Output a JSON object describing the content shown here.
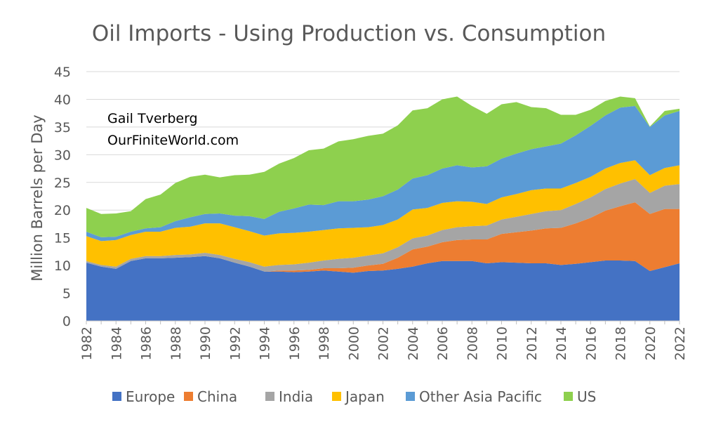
{
  "chart_data": {
    "type": "area",
    "stacked": true,
    "title": "Oil Imports - Using Production vs. Consumption",
    "xlabel": "",
    "ylabel": "Million Barrels per Day",
    "ylim": [
      0,
      45
    ],
    "yticks": [
      0,
      5,
      10,
      15,
      20,
      25,
      30,
      35,
      40,
      45
    ],
    "xlim": [
      1982,
      2022
    ],
    "xticks": [
      1982,
      1984,
      1986,
      1988,
      1990,
      1992,
      1994,
      1996,
      1998,
      2000,
      2002,
      2004,
      2006,
      2008,
      2010,
      2012,
      2014,
      2016,
      2018,
      2020,
      2022
    ],
    "grid": "horizontal",
    "legend_position": "bottom",
    "annotations": [
      "Gail Tverberg",
      "OurFiniteWorld.com"
    ],
    "x": [
      1982,
      1983,
      1984,
      1985,
      1986,
      1987,
      1988,
      1989,
      1990,
      1991,
      1992,
      1993,
      1994,
      1995,
      1996,
      1997,
      1998,
      1999,
      2000,
      2001,
      2002,
      2003,
      2004,
      2005,
      2006,
      2007,
      2008,
      2009,
      2010,
      2011,
      2012,
      2013,
      2014,
      2015,
      2016,
      2017,
      2018,
      2019,
      2020,
      2021,
      2022
    ],
    "series": [
      {
        "name": "Europe",
        "color": "#4472C4",
        "values": [
          10.5,
          9.8,
          9.4,
          10.8,
          11.3,
          11.3,
          11.4,
          11.5,
          11.7,
          11.3,
          10.5,
          9.8,
          8.9,
          8.9,
          8.8,
          8.9,
          9.1,
          8.9,
          8.7,
          9.0,
          9.1,
          9.4,
          9.8,
          10.4,
          10.8,
          10.8,
          10.8,
          10.4,
          10.6,
          10.5,
          10.4,
          10.4,
          10.1,
          10.3,
          10.6,
          10.9,
          10.9,
          10.8,
          9.0,
          9.7,
          10.4
        ]
      },
      {
        "name": "China",
        "color": "#ED7D31",
        "values": [
          0,
          0,
          0,
          0,
          0,
          0,
          0,
          0,
          0,
          0,
          0,
          0,
          0,
          0.2,
          0.3,
          0.3,
          0.4,
          0.6,
          0.9,
          1.0,
          1.2,
          2.0,
          3.1,
          3.0,
          3.4,
          3.8,
          3.9,
          4.3,
          5.1,
          5.5,
          5.9,
          6.3,
          6.7,
          7.3,
          8.0,
          9.0,
          9.8,
          10.6,
          10.3,
          10.5,
          9.8
        ]
      },
      {
        "name": "India",
        "color": "#A5A5A5",
        "values": [
          0.3,
          0.3,
          0.4,
          0.4,
          0.4,
          0.4,
          0.5,
          0.5,
          0.6,
          0.6,
          0.7,
          0.8,
          0.9,
          1.0,
          1.1,
          1.3,
          1.4,
          1.7,
          1.8,
          1.8,
          1.9,
          1.9,
          2.0,
          2.0,
          2.2,
          2.3,
          2.4,
          2.5,
          2.6,
          2.8,
          3.0,
          3.1,
          3.2,
          3.5,
          3.7,
          3.9,
          4.1,
          4.2,
          3.8,
          4.2,
          4.5
        ]
      },
      {
        "name": "Japan",
        "color": "#FFC000",
        "values": [
          4.5,
          4.3,
          4.8,
          4.3,
          4.4,
          4.4,
          4.9,
          5.0,
          5.3,
          5.7,
          5.7,
          5.6,
          5.6,
          5.7,
          5.7,
          5.6,
          5.5,
          5.5,
          5.4,
          5.1,
          5.1,
          5.0,
          5.2,
          5.0,
          4.9,
          4.7,
          4.4,
          3.9,
          4.0,
          4.1,
          4.3,
          4.1,
          3.9,
          3.8,
          3.7,
          3.7,
          3.7,
          3.4,
          3.2,
          3.2,
          3.4
        ]
      },
      {
        "name": "Other Asia Pacific",
        "color": "#5B9BD5",
        "values": [
          0.8,
          0.7,
          0.6,
          0.6,
          0.6,
          0.8,
          1.2,
          1.7,
          1.7,
          1.8,
          2.1,
          2.7,
          3.0,
          3.9,
          4.4,
          4.9,
          4.5,
          4.9,
          4.8,
          5.0,
          5.2,
          5.4,
          5.6,
          5.9,
          6.2,
          6.5,
          6.2,
          6.8,
          7.0,
          7.3,
          7.4,
          7.6,
          8.1,
          8.6,
          9.2,
          9.6,
          10.0,
          9.8,
          8.7,
          9.5,
          9.8
        ]
      },
      {
        "name": "US",
        "color": "#8ED04E",
        "values": [
          4.3,
          4.2,
          4.2,
          3.7,
          5.3,
          5.9,
          6.9,
          7.3,
          7.1,
          6.5,
          7.3,
          7.5,
          8.5,
          8.7,
          9.1,
          9.8,
          10.2,
          10.8,
          11.2,
          11.5,
          11.3,
          11.6,
          12.3,
          12.1,
          12.5,
          12.4,
          11.1,
          9.5,
          9.8,
          9.3,
          7.6,
          6.9,
          5.2,
          3.7,
          2.9,
          2.6,
          2.0,
          1.4,
          0.1,
          0.8,
          0.4
        ]
      }
    ]
  }
}
